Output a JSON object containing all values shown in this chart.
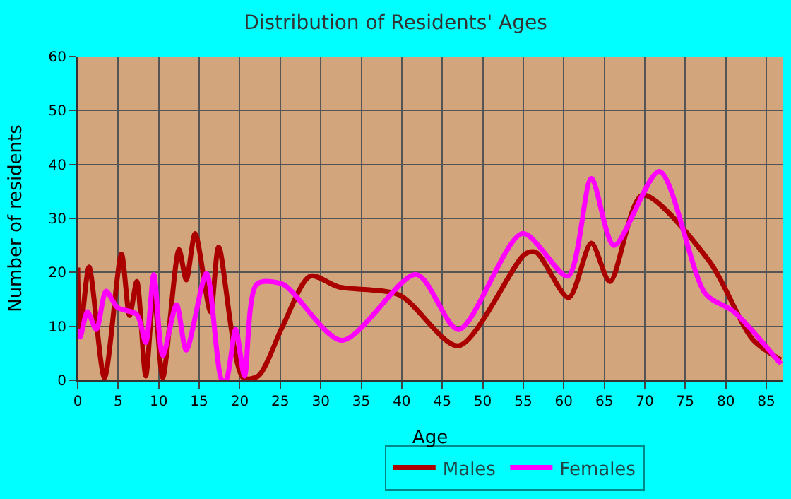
{
  "chart_data": {
    "type": "line",
    "title": "Distribution of Residents' Ages",
    "xlabel": "Age",
    "ylabel": "Number of residents",
    "xlim": [
      0,
      87
    ],
    "xticks": [
      0,
      5,
      10,
      15,
      20,
      25,
      30,
      35,
      40,
      45,
      50,
      55,
      60,
      65,
      70,
      75,
      80,
      85
    ],
    "ylim": [
      0,
      60
    ],
    "yticks": [
      0,
      10,
      20,
      30,
      40,
      50,
      60
    ],
    "grid": true,
    "legend": "bottom",
    "marker": "none",
    "line_style": "solid",
    "series": [
      {
        "name": "Males",
        "color": "#aa0000",
        "x": [
          0,
          0.3,
          1.4,
          3.3,
          5.4,
          6.4,
          7.3,
          8.4,
          9.4,
          10.5,
          12.5,
          13.4,
          14.5,
          16.4,
          17.4,
          20.4,
          22.3,
          25.3,
          28.7,
          32.2,
          39.7,
          47,
          55.2,
          56.6,
          60.6,
          63.4,
          65.7,
          69.7,
          78,
          83.3,
          86.8
        ],
        "values": [
          20.9,
          8.4,
          21,
          0.5,
          23.4,
          12,
          18.3,
          0.8,
          16.5,
          0.5,
          24.2,
          18.6,
          27.2,
          12.7,
          24.7,
          0.5,
          0.8,
          10,
          19.3,
          17.3,
          15.8,
          6.4,
          23.4,
          23.7,
          15.3,
          25.4,
          18.3,
          34.3,
          22,
          7.6,
          3.8
        ]
      },
      {
        "name": "Females",
        "color": "#ff00ff",
        "x": [
          0,
          0.3,
          1.2,
          2.3,
          3.5,
          4.9,
          7.3,
          8.4,
          9.4,
          10.5,
          12.2,
          13.4,
          15.9,
          17.8,
          18.3,
          19.5,
          20.6,
          22.1,
          25.3,
          32.6,
          41.8,
          47,
          54.9,
          60.5,
          63.4,
          66.2,
          71.8,
          77.5,
          81,
          86.8
        ],
        "values": [
          9.4,
          8,
          12.7,
          9.4,
          16.5,
          13.5,
          12.2,
          7,
          19.6,
          4.6,
          14,
          5.6,
          19.8,
          0,
          0,
          9.4,
          0.8,
          17.8,
          17.8,
          7.4,
          19.6,
          9.4,
          27.2,
          19.3,
          37.4,
          25,
          38.7,
          16,
          12.7,
          3
        ]
      }
    ]
  }
}
